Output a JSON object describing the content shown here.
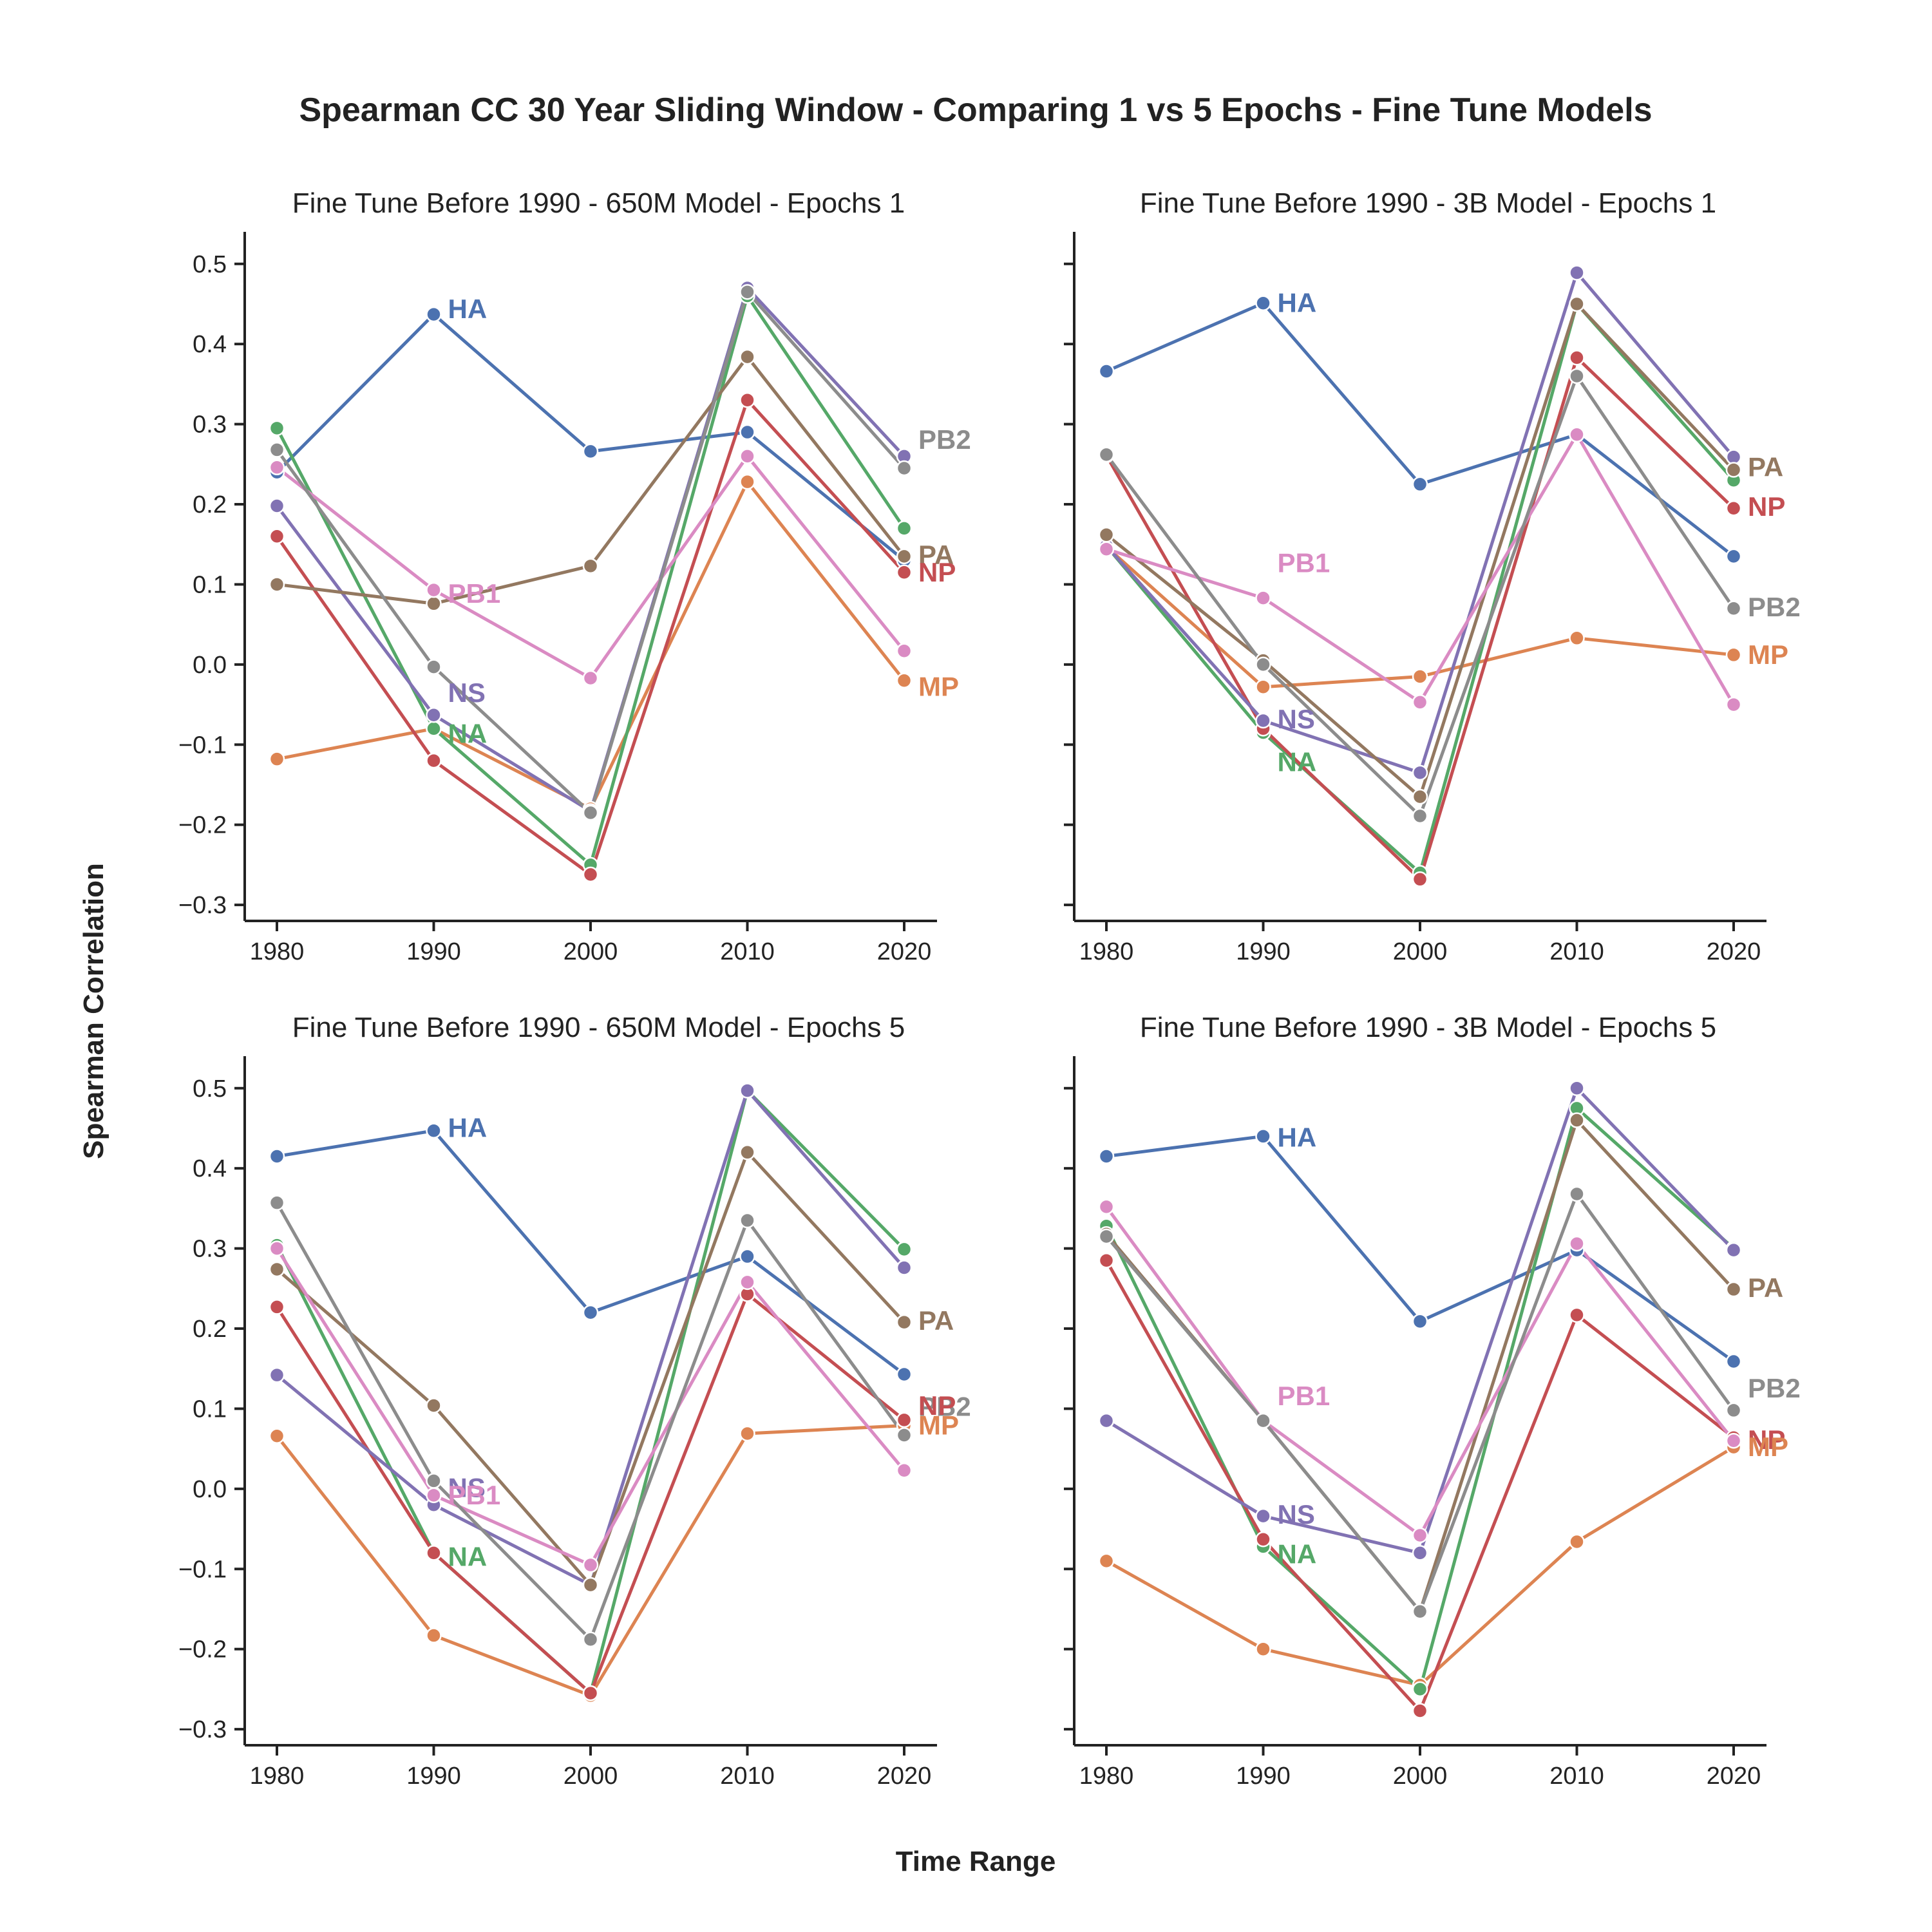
{
  "suptitle": "Spearman CC 30 Year Sliding Window - Comparing 1 vs 5 Epochs - Fine Tune Models",
  "xlabel": "Time Range",
  "ylabel": "Spearman Correlation",
  "colors": {
    "HA": "#4c72b0",
    "MP": "#dd8452",
    "NA": "#55a868",
    "NP": "#c44e52",
    "NS": "#8172b3",
    "PA": "#937860",
    "PB1": "#da8bc3",
    "PB2": "#8c8c8c"
  },
  "chart_data": [
    {
      "type": "line",
      "title": "Fine Tune Before 1990 - 650M Model - Epochs 1",
      "x": [
        1980,
        1990,
        2000,
        2010,
        2020
      ],
      "x_ticks": [
        "1980",
        "1990",
        "2000",
        "2010",
        "2020"
      ],
      "y_ticks": [
        "−0.3",
        "−0.2",
        "−0.1",
        "0.0",
        "0.1",
        "0.2",
        "0.3",
        "0.4",
        "0.5"
      ],
      "ylim": [
        -0.32,
        0.54
      ],
      "grid": false,
      "series": [
        {
          "name": "HA",
          "values": [
            0.24,
            0.437,
            0.266,
            0.29,
            0.13
          ]
        },
        {
          "name": "MP",
          "values": [
            -0.118,
            -0.08,
            -0.18,
            0.228,
            -0.02
          ]
        },
        {
          "name": "NA",
          "values": [
            0.295,
            -0.08,
            -0.25,
            0.46,
            0.17
          ]
        },
        {
          "name": "NP",
          "values": [
            0.16,
            -0.12,
            -0.262,
            0.33,
            0.115
          ]
        },
        {
          "name": "NS",
          "values": [
            0.198,
            -0.063,
            -0.183,
            0.47,
            0.26
          ]
        },
        {
          "name": "PA",
          "values": [
            0.1,
            0.076,
            0.123,
            0.384,
            0.135
          ]
        },
        {
          "name": "PB1",
          "values": [
            0.246,
            0.093,
            -0.017,
            0.26,
            0.017
          ]
        },
        {
          "name": "PB2",
          "values": [
            0.268,
            -0.003,
            -0.185,
            0.465,
            0.245
          ]
        }
      ],
      "end_labels": [
        {
          "text": "NS",
          "series": "NS"
        },
        {
          "text": "NA",
          "series": "NA"
        },
        {
          "text": "HA",
          "series": "HA"
        },
        {
          "text": "PB1",
          "series": "PB1"
        },
        {
          "text": "PB2",
          "series": "PB2"
        },
        {
          "text": "PA",
          "series": "PA"
        },
        {
          "text": "NP",
          "series": "NP"
        },
        {
          "text": "MP",
          "series": "MP"
        }
      ]
    },
    {
      "type": "line",
      "title": "Fine Tune Before 1990 - 3B Model - Epochs 1",
      "x": [
        1980,
        1990,
        2000,
        2010,
        2020
      ],
      "x_ticks": [
        "1980",
        "1990",
        "2000",
        "2010",
        "2020"
      ],
      "y_ticks": [],
      "ylim": [
        -0.32,
        0.54
      ],
      "grid": false,
      "series": [
        {
          "name": "HA",
          "values": [
            0.366,
            0.451,
            0.225,
            0.287,
            0.135
          ]
        },
        {
          "name": "MP",
          "values": [
            0.147,
            -0.028,
            -0.015,
            0.033,
            0.012
          ]
        },
        {
          "name": "NA",
          "values": [
            0.148,
            -0.085,
            -0.26,
            0.45,
            0.23
          ]
        },
        {
          "name": "NP",
          "values": [
            0.261,
            -0.08,
            -0.268,
            0.383,
            0.195
          ]
        },
        {
          "name": "NS",
          "values": [
            0.148,
            -0.07,
            -0.135,
            0.489,
            0.259
          ]
        },
        {
          "name": "PA",
          "values": [
            0.162,
            0.005,
            -0.165,
            0.45,
            0.243
          ]
        },
        {
          "name": "PB1",
          "values": [
            0.144,
            0.083,
            -0.047,
            0.287,
            -0.05
          ]
        },
        {
          "name": "PB2",
          "values": [
            0.262,
            0.0,
            -0.189,
            0.36,
            0.07
          ]
        }
      ],
      "end_labels": [
        {
          "text": "NS",
          "series": "NS"
        },
        {
          "text": "NA",
          "series": "NA"
        },
        {
          "text": "PB1",
          "series": "PB1"
        },
        {
          "text": "HA",
          "series": "HA"
        },
        {
          "text": "PA",
          "series": "PA"
        },
        {
          "text": "NP",
          "series": "NP"
        },
        {
          "text": "PB2",
          "series": "PB2"
        },
        {
          "text": "MP",
          "series": "MP"
        }
      ]
    },
    {
      "type": "line",
      "title": "Fine Tune Before 1990 - 650M Model - Epochs 5",
      "x": [
        1980,
        1990,
        2000,
        2010,
        2020
      ],
      "x_ticks": [
        "1980",
        "1990",
        "2000",
        "2010",
        "2020"
      ],
      "y_ticks": [
        "−0.3",
        "−0.2",
        "−0.1",
        "0.0",
        "0.1",
        "0.2",
        "0.3",
        "0.4",
        "0.5"
      ],
      "ylim": [
        -0.32,
        0.54
      ],
      "grid": false,
      "series": [
        {
          "name": "HA",
          "values": [
            0.415,
            0.447,
            0.22,
            0.29,
            0.143
          ]
        },
        {
          "name": "MP",
          "values": [
            0.066,
            -0.183,
            -0.258,
            0.069,
            0.079
          ]
        },
        {
          "name": "NA",
          "values": [
            0.304,
            -0.08,
            -0.255,
            0.497,
            0.299
          ]
        },
        {
          "name": "NP",
          "values": [
            0.227,
            -0.08,
            -0.255,
            0.243,
            0.086
          ]
        },
        {
          "name": "NS",
          "values": [
            0.142,
            -0.02,
            -0.12,
            0.497,
            0.276
          ]
        },
        {
          "name": "PA",
          "values": [
            0.274,
            0.104,
            -0.12,
            0.42,
            0.208
          ]
        },
        {
          "name": "PB1",
          "values": [
            0.3,
            -0.008,
            -0.095,
            0.258,
            0.023
          ]
        },
        {
          "name": "PB2",
          "values": [
            0.357,
            0.01,
            -0.188,
            0.335,
            0.067
          ]
        }
      ],
      "end_labels": [
        {
          "text": "NS",
          "series": "NS"
        },
        {
          "text": "NA",
          "series": "NA"
        },
        {
          "text": "HA",
          "series": "HA"
        },
        {
          "text": "PB1",
          "series": "PB1"
        },
        {
          "text": "PA",
          "series": "PA"
        },
        {
          "text": "PB2",
          "series": "PB2"
        },
        {
          "text": "NP",
          "series": "NP"
        },
        {
          "text": "MP",
          "series": "MP"
        }
      ]
    },
    {
      "type": "line",
      "title": "Fine Tune Before 1990 - 3B Model - Epochs 5",
      "x": [
        1980,
        1990,
        2000,
        2010,
        2020
      ],
      "x_ticks": [
        "1980",
        "1990",
        "2000",
        "2010",
        "2020"
      ],
      "y_ticks": [],
      "ylim": [
        -0.32,
        0.54
      ],
      "grid": false,
      "series": [
        {
          "name": "HA",
          "values": [
            0.415,
            0.44,
            0.209,
            0.298,
            0.159
          ]
        },
        {
          "name": "MP",
          "values": [
            -0.09,
            -0.2,
            -0.245,
            -0.066,
            0.052
          ]
        },
        {
          "name": "NA",
          "values": [
            0.328,
            -0.072,
            -0.25,
            0.475,
            0.3
          ]
        },
        {
          "name": "NP",
          "values": [
            0.285,
            -0.063,
            -0.277,
            0.217,
            0.064
          ]
        },
        {
          "name": "NS",
          "values": [
            0.085,
            -0.034,
            -0.08,
            0.5,
            0.298
          ]
        },
        {
          "name": "PA",
          "values": [
            0.318,
            0.085,
            -0.153,
            0.46,
            0.249
          ]
        },
        {
          "name": "PB1",
          "values": [
            0.352,
            0.085,
            -0.058,
            0.306,
            0.06
          ]
        },
        {
          "name": "PB2",
          "values": [
            0.315,
            0.085,
            -0.153,
            0.368,
            0.098
          ]
        }
      ],
      "end_labels": [
        {
          "text": "NS",
          "series": "NS"
        },
        {
          "text": "NA",
          "series": "NA"
        },
        {
          "text": "PB1",
          "series": "PB1"
        },
        {
          "text": "HA",
          "series": "HA"
        },
        {
          "text": "PA",
          "series": "PA"
        },
        {
          "text": "PB2",
          "series": "PB2"
        },
        {
          "text": "NP",
          "series": "NP"
        },
        {
          "text": "MP",
          "series": "MP"
        }
      ]
    }
  ]
}
